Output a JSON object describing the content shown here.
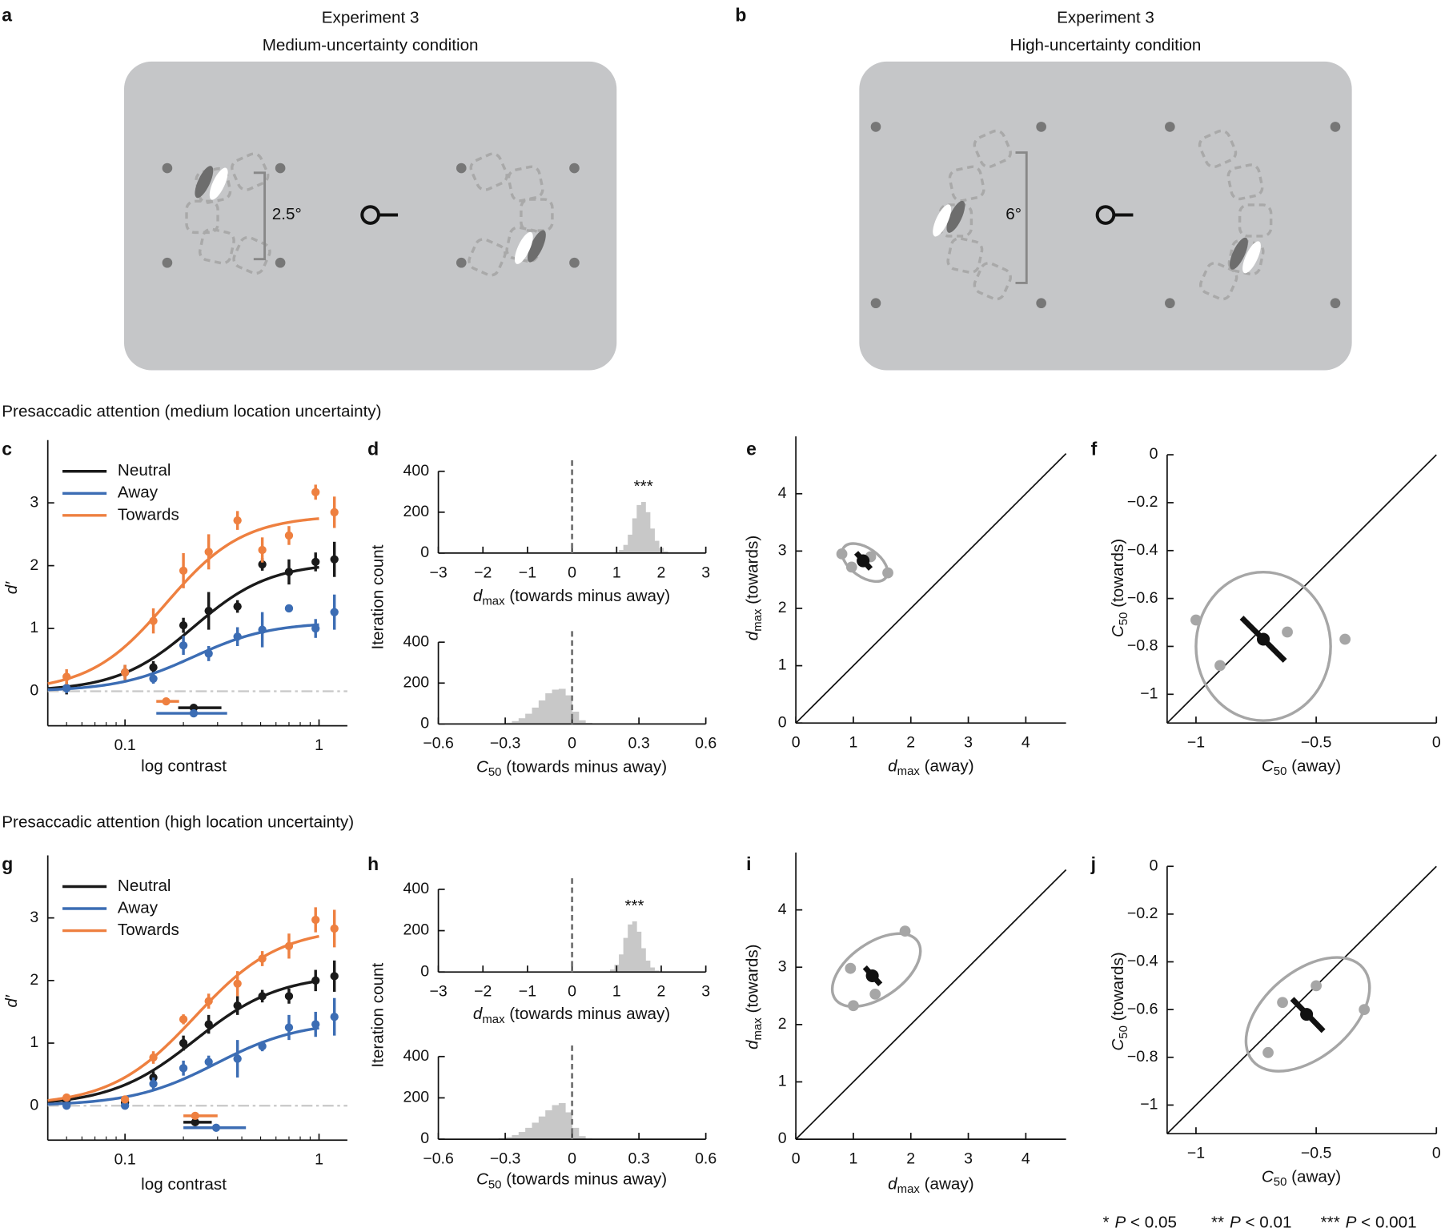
{
  "figure": {
    "panels": [
      {
        "letter": "a",
        "title": "Experiment 3",
        "subtitle": "Medium-uncertainty condition",
        "scale": "2.5°"
      },
      {
        "letter": "b",
        "title": "Experiment 3",
        "subtitle": "High-uncertainty condition",
        "scale": "6°"
      }
    ],
    "sections": [
      "Presaccadic attention (medium location uncertainty)",
      "Presaccadic attention (high location uncertainty)"
    ],
    "significance": [
      {
        "stars": "*",
        "p": "P",
        "text": "< 0.05"
      },
      {
        "stars": "**",
        "p": "P",
        "text": "< 0.01"
      },
      {
        "stars": "***",
        "p": "P",
        "text": "< 0.001"
      }
    ]
  },
  "chart_data": [
    {
      "type": "line",
      "letter": "c",
      "xscale": "log",
      "xlabel": "log contrast",
      "ylabel": {
        "var": "d′"
      },
      "xlim": [
        0.04,
        1.4
      ],
      "xticks": [
        0.1,
        1
      ],
      "xminorticks": [
        0.05,
        0.06,
        0.07,
        0.08,
        0.09,
        0.2,
        0.3,
        0.4,
        0.5,
        0.6,
        0.7,
        0.8,
        0.9
      ],
      "ylim": [
        -0.55,
        4
      ],
      "yticks": [
        0,
        1,
        2,
        3
      ],
      "baseline": 0,
      "legend": "upper left",
      "x": [
        0.05,
        0.1,
        0.14,
        0.2,
        0.27,
        0.38,
        0.51,
        0.7,
        0.96,
        1.2
      ],
      "series": [
        {
          "name": "Neutral",
          "color": "#1a1a1a",
          "values": [
            0.05,
            0.3,
            0.38,
            1.05,
            1.28,
            1.35,
            2.02,
            1.9,
            2.06,
            2.1
          ],
          "errors": [
            0.1,
            0.12,
            0.1,
            0.12,
            0.3,
            0.1,
            0.1,
            0.2,
            0.15,
            0.28
          ],
          "dmax": 2.05,
          "c50": 0.226,
          "c50_ci": [
            0.188,
            0.314
          ],
          "n": 2.2
        },
        {
          "name": "Away",
          "color": "#3c6db4",
          "values": [
            0.05,
            0.3,
            0.2,
            0.73,
            0.6,
            0.87,
            0.98,
            1.32,
            1.0,
            1.26
          ],
          "errors": [
            0.08,
            0.1,
            0.08,
            0.15,
            0.12,
            0.15,
            0.28,
            0.05,
            0.15,
            0.28
          ],
          "dmax": 1.1,
          "c50": 0.226,
          "c50_ci": [
            0.145,
            0.336
          ],
          "n": 2.2
        },
        {
          "name": "Towards",
          "color": "#ee8040",
          "values": [
            0.23,
            0.3,
            1.12,
            1.92,
            2.22,
            2.72,
            2.25,
            2.48,
            3.17,
            2.85
          ],
          "errors": [
            0.12,
            0.12,
            0.2,
            0.28,
            0.28,
            0.15,
            0.2,
            0.15,
            0.12,
            0.25
          ],
          "dmax": 2.8,
          "c50": 0.163,
          "c50_ci": [
            0.145,
            0.19
          ],
          "n": 2.2
        }
      ]
    },
    {
      "type": "histogram",
      "letter": "d",
      "ylabel": "Iteration count",
      "annotation": "***",
      "color": "#c8c8c8",
      "xlabel": {
        "var": "d",
        "sub": "max",
        "text": "(towards minus away)"
      },
      "xlim": [
        -3,
        3
      ],
      "xticks": [
        {
          "value": -3,
          "label": "−3"
        },
        {
          "value": -2,
          "label": "−2"
        },
        {
          "value": -1,
          "label": "−1"
        },
        0,
        1,
        2,
        3
      ],
      "ylim": [
        0,
        400
      ],
      "yticks": [
        0,
        200,
        400
      ],
      "refline": 0,
      "bins": [
        0.95,
        1.05,
        1.15,
        1.25,
        1.35,
        1.45,
        1.55,
        1.65,
        1.75,
        1.85,
        1.95,
        2.05,
        2.15,
        2.25
      ],
      "counts": [
        4,
        15,
        40,
        90,
        170,
        235,
        250,
        200,
        120,
        60,
        25,
        8,
        2
      ]
    },
    {
      "type": "histogram",
      "color": "#c8c8c8",
      "xlabel": {
        "var": "C",
        "sub": "50",
        "text": "(towards minus away)"
      },
      "xlim": [
        -0.6,
        0.6
      ],
      "xticks": [
        {
          "value": -0.6,
          "label": "−0.6"
        },
        {
          "value": -0.3,
          "label": "−0.3"
        },
        0,
        0.3,
        0.6
      ],
      "ylim": [
        0,
        400
      ],
      "yticks": [
        0,
        200,
        400
      ],
      "refline": 0,
      "bins": [
        -0.33,
        -0.3,
        -0.27,
        -0.24,
        -0.21,
        -0.18,
        -0.15,
        -0.12,
        -0.09,
        -0.06,
        -0.03,
        0,
        0.03,
        0.06,
        0.09,
        0.12
      ],
      "counts": [
        2,
        6,
        14,
        28,
        50,
        80,
        115,
        150,
        168,
        172,
        140,
        60,
        18,
        5,
        1
      ]
    },
    {
      "type": "scatter",
      "letter": "e",
      "diagonal": true,
      "xlabel": {
        "var": "d",
        "sub": "max",
        "text": "(away)"
      },
      "ylabel": {
        "var": "d",
        "sub": "max",
        "text": "(towards)"
      },
      "xlim": [
        0,
        4.7
      ],
      "ylim": [
        0,
        5
      ],
      "xticks": [
        0,
        1,
        2,
        3,
        4
      ],
      "yticks": [
        0,
        1,
        2,
        3,
        4
      ],
      "point_color": "#a6a6a6",
      "mean_color": "#111111",
      "ellipse_color": "#a6a6a6",
      "x": [
        0.8,
        0.97,
        1.3,
        1.6
      ],
      "y": [
        2.95,
        2.72,
        2.9,
        2.62
      ],
      "mean": {
        "x": 1.17,
        "y": 2.83
      },
      "bar": {
        "x": [
          1.05,
          1.3
        ],
        "y": [
          2.97,
          2.69
        ]
      },
      "ellipse": {
        "cx": 1.2,
        "cy": 2.8,
        "width": 0.9,
        "height": 0.5,
        "angle": -35
      }
    },
    {
      "type": "scatter",
      "letter": "f",
      "diagonal": true,
      "xlabel": {
        "var": "C",
        "sub": "50",
        "text": "(away)"
      },
      "ylabel": {
        "var": "C",
        "sub": "50",
        "text": "(towards)"
      },
      "xlim": [
        -1.12,
        0
      ],
      "ylim": [
        -1.12,
        0
      ],
      "xticks": [
        {
          "value": -1,
          "label": "−1"
        },
        {
          "value": -0.5,
          "label": "−0.5"
        },
        0
      ],
      "yticks": [
        0,
        {
          "value": -0.2,
          "label": "−0.2"
        },
        {
          "value": -0.4,
          "label": "−0.4"
        },
        {
          "value": -0.6,
          "label": "−0.6"
        },
        {
          "value": -0.8,
          "label": "−0.8"
        },
        {
          "value": -1,
          "label": "−1"
        }
      ],
      "point_color": "#a6a6a6",
      "mean_color": "#111111",
      "ellipse_color": "#a6a6a6",
      "x": [
        -1.0,
        -0.9,
        -0.62,
        -0.38
      ],
      "y": [
        -0.69,
        -0.88,
        -0.74,
        -0.77
      ],
      "mean": {
        "x": -0.72,
        "y": -0.77
      },
      "bar": {
        "x": [
          -0.81,
          -0.63
        ],
        "y": [
          -0.68,
          -0.86
        ]
      },
      "ellipse": {
        "cx": -0.72,
        "cy": -0.8,
        "width": 0.56,
        "height": 0.62,
        "angle": 0
      }
    },
    {
      "type": "line",
      "letter": "g",
      "xscale": "log",
      "xlabel": "log contrast",
      "ylabel": {
        "var": "d′"
      },
      "xlim": [
        0.04,
        1.4
      ],
      "xticks": [
        0.1,
        1
      ],
      "xminorticks": [
        0.05,
        0.06,
        0.07,
        0.08,
        0.09,
        0.2,
        0.3,
        0.4,
        0.5,
        0.6,
        0.7,
        0.8,
        0.9
      ],
      "ylim": [
        -0.55,
        4
      ],
      "yticks": [
        0,
        1,
        2,
        3
      ],
      "baseline": 0,
      "legend": "upper left",
      "x": [
        0.05,
        0.1,
        0.14,
        0.2,
        0.27,
        0.38,
        0.51,
        0.7,
        0.96,
        1.2
      ],
      "series": [
        {
          "name": "Neutral",
          "color": "#1a1a1a",
          "values": [
            0.05,
            0.05,
            0.45,
            1.0,
            1.3,
            1.6,
            1.75,
            1.75,
            2.0,
            2.07
          ],
          "errors": [
            0.05,
            0.05,
            0.1,
            0.12,
            0.15,
            0.15,
            0.1,
            0.12,
            0.17,
            0.25
          ],
          "dmax": 2.1,
          "c50": 0.23,
          "c50_ci": [
            0.2,
            0.28
          ],
          "n": 2.0
        },
        {
          "name": "Away",
          "color": "#3c6db4",
          "values": [
            0.0,
            0.0,
            0.35,
            0.6,
            0.7,
            0.75,
            0.95,
            1.25,
            1.3,
            1.42
          ],
          "errors": [
            0.05,
            0.05,
            0.1,
            0.12,
            0.1,
            0.3,
            0.08,
            0.2,
            0.2,
            0.3
          ],
          "dmax": 1.35,
          "c50": 0.295,
          "c50_ci": [
            0.2,
            0.42
          ],
          "n": 2.0
        },
        {
          "name": "Towards",
          "color": "#ee8040",
          "values": [
            0.13,
            0.1,
            0.77,
            1.38,
            1.67,
            1.95,
            2.35,
            2.55,
            2.97,
            2.83
          ],
          "errors": [
            0.05,
            0.05,
            0.1,
            0.08,
            0.12,
            0.2,
            0.12,
            0.2,
            0.2,
            0.3
          ],
          "dmax": 2.85,
          "c50": 0.23,
          "c50_ci": [
            0.2,
            0.3
          ],
          "n": 2.0
        }
      ]
    },
    {
      "type": "histogram",
      "letter": "h",
      "ylabel": "Iteration count",
      "annotation": "***",
      "color": "#c8c8c8",
      "xlabel": {
        "var": "d",
        "sub": "max",
        "text": "(towards minus away)"
      },
      "xlim": [
        -3,
        3
      ],
      "xticks": [
        {
          "value": -3,
          "label": "−3"
        },
        {
          "value": -2,
          "label": "−2"
        },
        {
          "value": -1,
          "label": "−1"
        },
        0,
        1,
        2,
        3
      ],
      "ylim": [
        0,
        400
      ],
      "yticks": [
        0,
        200,
        400
      ],
      "refline": 0,
      "bins": [
        0.75,
        0.85,
        0.95,
        1.05,
        1.15,
        1.25,
        1.35,
        1.45,
        1.55,
        1.65,
        1.75,
        1.85,
        1.95,
        2.05
      ],
      "counts": [
        3,
        12,
        35,
        85,
        165,
        230,
        245,
        195,
        115,
        55,
        22,
        7,
        2
      ]
    },
    {
      "type": "histogram",
      "color": "#c8c8c8",
      "xlabel": {
        "var": "C",
        "sub": "50",
        "text": "(towards minus away)"
      },
      "xlim": [
        -0.6,
        0.6
      ],
      "xticks": [
        {
          "value": -0.6,
          "label": "−0.6"
        },
        {
          "value": -0.3,
          "label": "−0.3"
        },
        0,
        0.3,
        0.6
      ],
      "ylim": [
        0,
        400
      ],
      "yticks": [
        0,
        200,
        400
      ],
      "refline": 0,
      "bins": [
        -0.36,
        -0.33,
        -0.3,
        -0.27,
        -0.24,
        -0.21,
        -0.18,
        -0.15,
        -0.12,
        -0.09,
        -0.06,
        -0.03,
        0,
        0.03,
        0.06,
        0.09,
        0.12
      ],
      "counts": [
        2,
        5,
        10,
        20,
        35,
        55,
        80,
        110,
        140,
        165,
        175,
        130,
        55,
        15,
        4,
        1
      ]
    },
    {
      "type": "scatter",
      "letter": "i",
      "diagonal": true,
      "xlabel": {
        "var": "d",
        "sub": "max",
        "text": "(away)"
      },
      "ylabel": {
        "var": "d",
        "sub": "max",
        "text": "(towards)"
      },
      "xlim": [
        0,
        4.7
      ],
      "ylim": [
        0,
        5
      ],
      "xticks": [
        0,
        1,
        2,
        3,
        4
      ],
      "yticks": [
        0,
        1,
        2,
        3,
        4
      ],
      "point_color": "#a6a6a6",
      "mean_color": "#111111",
      "ellipse_color": "#a6a6a6",
      "x": [
        0.95,
        1.0,
        1.38,
        1.9
      ],
      "y": [
        2.98,
        2.33,
        2.53,
        3.63
      ],
      "mean": {
        "x": 1.33,
        "y": 2.85
      },
      "bar": {
        "x": [
          1.2,
          1.47
        ],
        "y": [
          3.0,
          2.7
        ]
      },
      "ellipse": {
        "cx": 1.4,
        "cy": 2.95,
        "width": 1.75,
        "height": 0.95,
        "angle": 35
      }
    },
    {
      "type": "scatter",
      "letter": "j",
      "diagonal": true,
      "xlabel": {
        "var": "C",
        "sub": "50",
        "text": "(away)"
      },
      "ylabel": {
        "var": "C",
        "sub": "50",
        "text": "(towards)"
      },
      "xlim": [
        -1.12,
        0
      ],
      "ylim": [
        -1.12,
        0
      ],
      "xticks": [
        {
          "value": -1,
          "label": "−1"
        },
        {
          "value": -0.5,
          "label": "−0.5"
        },
        0
      ],
      "yticks": [
        0,
        {
          "value": -0.2,
          "label": "−0.2"
        },
        {
          "value": -0.4,
          "label": "−0.4"
        },
        {
          "value": -0.6,
          "label": "−0.6"
        },
        {
          "value": -0.8,
          "label": "−0.8"
        },
        {
          "value": -1,
          "label": "−1"
        }
      ],
      "point_color": "#a6a6a6",
      "mean_color": "#111111",
      "ellipse_color": "#a6a6a6",
      "x": [
        -0.7,
        -0.64,
        -0.5,
        -0.3
      ],
      "y": [
        -0.78,
        -0.57,
        -0.5,
        -0.6
      ],
      "mean": {
        "x": -0.54,
        "y": -0.62
      },
      "bar": {
        "x": [
          -0.6,
          -0.47
        ],
        "y": [
          -0.555,
          -0.69
        ]
      },
      "ellipse": {
        "cx": -0.535,
        "cy": -0.62,
        "width": 0.6,
        "height": 0.36,
        "angle": 40
      }
    }
  ]
}
